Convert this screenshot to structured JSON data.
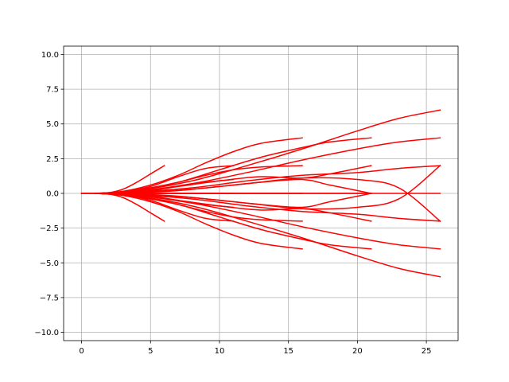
{
  "chart_data": {
    "type": "line",
    "title": "",
    "xlabel": "",
    "ylabel": "",
    "xlim": [
      -1.3,
      27.3
    ],
    "ylim": [
      -10.6,
      10.6
    ],
    "x_ticks": [
      0,
      5,
      10,
      15,
      20,
      25
    ],
    "y_ticks": [
      -10.0,
      -7.5,
      -5.0,
      -2.5,
      0.0,
      2.5,
      5.0,
      7.5,
      10.0
    ],
    "x_tick_labels": [
      "0",
      "5",
      "10",
      "15",
      "20",
      "25"
    ],
    "y_tick_labels": [
      "−10.0",
      "−7.5",
      "−5.0",
      "−2.5",
      "0.0",
      "2.5",
      "5.0",
      "7.5",
      "10.0"
    ],
    "grid": true,
    "legend": "none",
    "line_color": "#ff0000",
    "series": [
      {
        "x": [
          0,
          1,
          2,
          3,
          4,
          5,
          6
        ],
        "y": [
          0,
          0,
          0.05,
          0.3,
          0.8,
          1.4,
          2.0
        ]
      },
      {
        "x": [
          0,
          1,
          2,
          3,
          4,
          5,
          6
        ],
        "y": [
          0,
          0,
          -0.05,
          -0.3,
          -0.8,
          -1.4,
          -2.0
        ]
      },
      {
        "x": [
          0,
          1,
          2,
          3,
          4,
          5,
          6
        ],
        "y": [
          0,
          0,
          0,
          0,
          0,
          0,
          0
        ]
      },
      {
        "x": [
          1,
          3,
          5,
          7,
          9,
          11
        ],
        "y": [
          0,
          0.1,
          0.5,
          1.2,
          1.8,
          2.0
        ]
      },
      {
        "x": [
          1,
          3,
          5,
          7,
          9,
          11
        ],
        "y": [
          0,
          -0.1,
          -0.5,
          -1.2,
          -1.8,
          -2.0
        ]
      },
      {
        "x": [
          1,
          3,
          5,
          7,
          9,
          11
        ],
        "y": [
          0,
          0.05,
          0.2,
          0.5,
          0.8,
          1.0
        ]
      },
      {
        "x": [
          1,
          3,
          5,
          7,
          9,
          11
        ],
        "y": [
          0,
          -0.05,
          -0.2,
          -0.5,
          -0.8,
          -1.0
        ]
      },
      {
        "x": [
          1,
          3,
          5,
          7,
          9,
          11
        ],
        "y": [
          0,
          0,
          0,
          0,
          0,
          0
        ]
      },
      {
        "x": [
          1,
          3,
          5,
          7,
          9,
          11,
          13,
          16
        ],
        "y": [
          0,
          0.15,
          0.6,
          1.3,
          2.2,
          3.0,
          3.6,
          4.0
        ]
      },
      {
        "x": [
          1,
          3,
          5,
          7,
          9,
          11,
          13,
          16
        ],
        "y": [
          0,
          -0.15,
          -0.6,
          -1.3,
          -2.2,
          -3.0,
          -3.6,
          -4.0
        ]
      },
      {
        "x": [
          1,
          3,
          5,
          7,
          9,
          11,
          13,
          16
        ],
        "y": [
          0,
          0.1,
          0.4,
          0.8,
          1.3,
          1.7,
          1.9,
          2.0
        ]
      },
      {
        "x": [
          1,
          3,
          5,
          7,
          9,
          11,
          13,
          16
        ],
        "y": [
          0,
          -0.1,
          -0.4,
          -0.8,
          -1.3,
          -1.7,
          -1.9,
          -2.0
        ]
      },
      {
        "x": [
          1,
          3,
          5,
          7,
          9,
          11,
          13,
          16
        ],
        "y": [
          0,
          0,
          0,
          0,
          0,
          0,
          0,
          0
        ]
      },
      {
        "x": [
          1,
          4,
          7,
          10,
          13,
          16,
          18,
          21
        ],
        "y": [
          0,
          0.2,
          0.8,
          1.7,
          2.6,
          3.3,
          3.7,
          4.0
        ]
      },
      {
        "x": [
          1,
          4,
          7,
          10,
          13,
          16,
          18,
          21
        ],
        "y": [
          0,
          -0.2,
          -0.8,
          -1.7,
          -2.6,
          -3.3,
          -3.7,
          -4.0
        ]
      },
      {
        "x": [
          1,
          4,
          7,
          10,
          13,
          16,
          18,
          21
        ],
        "y": [
          0,
          0.1,
          0.5,
          0.9,
          1.2,
          1.1,
          1.4,
          2.0
        ]
      },
      {
        "x": [
          1,
          4,
          7,
          10,
          13,
          16,
          18,
          21
        ],
        "y": [
          0,
          -0.1,
          -0.5,
          -0.9,
          -1.2,
          -1.1,
          -1.4,
          -2.0
        ]
      },
      {
        "x": [
          1,
          4,
          7,
          10,
          13,
          16,
          18,
          21
        ],
        "y": [
          0,
          0.05,
          0.2,
          0.5,
          0.8,
          1.0,
          0.6,
          0.0
        ]
      },
      {
        "x": [
          1,
          4,
          7,
          10,
          13,
          16,
          18,
          21
        ],
        "y": [
          0,
          -0.05,
          -0.2,
          -0.5,
          -0.8,
          -1.0,
          -0.6,
          0.0
        ]
      },
      {
        "x": [
          1,
          4,
          7,
          10,
          13,
          16,
          18,
          21
        ],
        "y": [
          0,
          0,
          0,
          0,
          0,
          0,
          0,
          0
        ]
      },
      {
        "x": [
          1,
          4,
          8,
          12,
          16,
          20,
          23,
          26
        ],
        "y": [
          0,
          0.2,
          0.9,
          2.0,
          3.2,
          4.5,
          5.4,
          6.0
        ]
      },
      {
        "x": [
          1,
          4,
          8,
          12,
          16,
          20,
          23,
          26
        ],
        "y": [
          0,
          -0.2,
          -0.9,
          -2.0,
          -3.2,
          -4.5,
          -5.4,
          -6.0
        ]
      },
      {
        "x": [
          1,
          4,
          8,
          12,
          16,
          20,
          23,
          26
        ],
        "y": [
          0,
          0.15,
          0.7,
          1.5,
          2.4,
          3.2,
          3.7,
          4.0
        ]
      },
      {
        "x": [
          1,
          4,
          8,
          12,
          16,
          20,
          23,
          26
        ],
        "y": [
          0,
          -0.15,
          -0.7,
          -1.5,
          -2.4,
          -3.2,
          -3.7,
          -4.0
        ]
      },
      {
        "x": [
          1,
          4,
          8,
          12,
          16,
          20,
          23,
          26
        ],
        "y": [
          0,
          0.1,
          0.4,
          0.9,
          1.3,
          1.5,
          1.8,
          2.0
        ]
      },
      {
        "x": [
          1,
          4,
          8,
          12,
          16,
          20,
          23,
          26
        ],
        "y": [
          0,
          -0.1,
          -0.4,
          -0.9,
          -1.3,
          -1.5,
          -1.8,
          -2.0
        ]
      },
      {
        "x": [
          1,
          4,
          8,
          12,
          16,
          20,
          23,
          26
        ],
        "y": [
          0,
          0.05,
          0.3,
          0.7,
          1.1,
          1.0,
          0.4,
          -2.0
        ]
      },
      {
        "x": [
          1,
          4,
          8,
          12,
          16,
          20,
          23,
          26
        ],
        "y": [
          0,
          -0.05,
          -0.3,
          -0.7,
          -1.1,
          -1.0,
          -0.4,
          2.0
        ]
      },
      {
        "x": [
          1,
          4,
          8,
          12,
          16,
          20,
          23,
          26
        ],
        "y": [
          0,
          0,
          0,
          0,
          0,
          0,
          0,
          0
        ]
      }
    ]
  }
}
